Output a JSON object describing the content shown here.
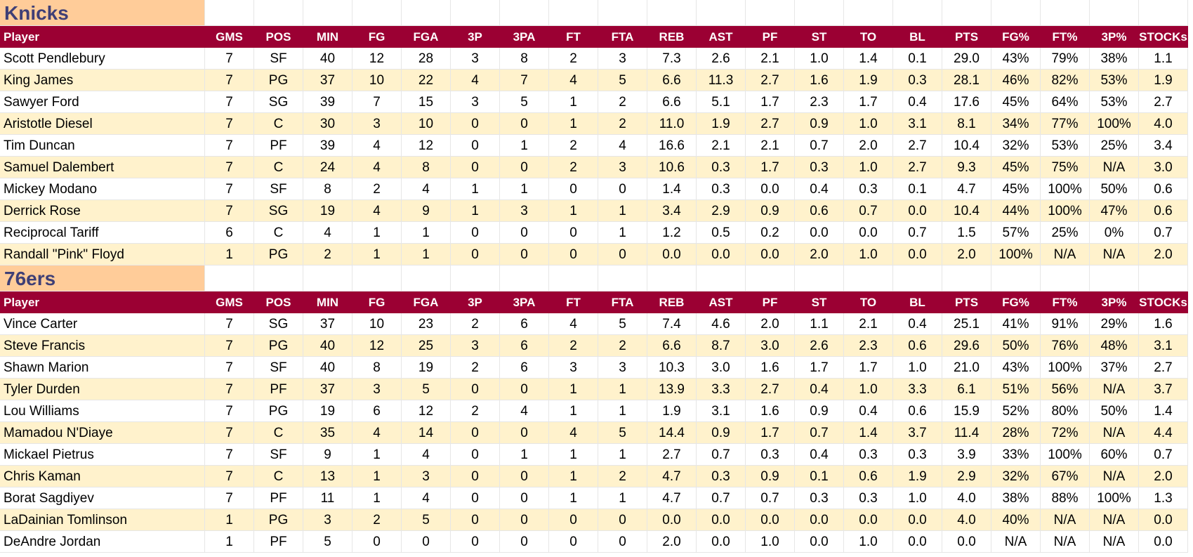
{
  "columns": [
    "Player",
    "GMS",
    "POS",
    "MIN",
    "FG",
    "FGA",
    "3P",
    "3PA",
    "FT",
    "FTA",
    "REB",
    "AST",
    "PF",
    "ST",
    "TO",
    "BL",
    "PTS",
    "FG%",
    "FT%",
    "3P%",
    "STOCKs"
  ],
  "colors": {
    "header_bg": "#9b0033",
    "header_text": "#ffffff",
    "team_bg": "#ffcc99",
    "team_text": "#3f3f76",
    "alt_row": "#fff2cc"
  },
  "teams": [
    {
      "name": "Knicks",
      "rows": [
        [
          "Scott Pendlebury",
          "7",
          "SF",
          "40",
          "12",
          "28",
          "3",
          "8",
          "2",
          "3",
          "7.3",
          "2.6",
          "2.1",
          "1.0",
          "1.4",
          "0.1",
          "29.0",
          "43%",
          "79%",
          "38%",
          "1.1"
        ],
        [
          "King James",
          "7",
          "PG",
          "37",
          "10",
          "22",
          "4",
          "7",
          "4",
          "5",
          "6.6",
          "11.3",
          "2.7",
          "1.6",
          "1.9",
          "0.3",
          "28.1",
          "46%",
          "82%",
          "53%",
          "1.9"
        ],
        [
          "Sawyer Ford",
          "7",
          "SG",
          "39",
          "7",
          "15",
          "3",
          "5",
          "1",
          "2",
          "6.6",
          "5.1",
          "1.7",
          "2.3",
          "1.7",
          "0.4",
          "17.6",
          "45%",
          "64%",
          "53%",
          "2.7"
        ],
        [
          "Aristotle Diesel",
          "7",
          "C",
          "30",
          "3",
          "10",
          "0",
          "0",
          "1",
          "2",
          "11.0",
          "1.9",
          "2.7",
          "0.9",
          "1.0",
          "3.1",
          "8.1",
          "34%",
          "77%",
          "100%",
          "4.0"
        ],
        [
          "Tim Duncan",
          "7",
          "PF",
          "39",
          "4",
          "12",
          "0",
          "1",
          "2",
          "4",
          "16.6",
          "2.1",
          "2.1",
          "0.7",
          "2.0",
          "2.7",
          "10.4",
          "32%",
          "53%",
          "25%",
          "3.4"
        ],
        [
          "Samuel Dalembert",
          "7",
          "C",
          "24",
          "4",
          "8",
          "0",
          "0",
          "2",
          "3",
          "10.6",
          "0.3",
          "1.7",
          "0.3",
          "1.0",
          "2.7",
          "9.3",
          "45%",
          "75%",
          "N/A",
          "3.0"
        ],
        [
          "Mickey Modano",
          "7",
          "SF",
          "8",
          "2",
          "4",
          "1",
          "1",
          "0",
          "0",
          "1.4",
          "0.3",
          "0.0",
          "0.4",
          "0.3",
          "0.1",
          "4.7",
          "45%",
          "100%",
          "50%",
          "0.6"
        ],
        [
          "Derrick Rose",
          "7",
          "SG",
          "19",
          "4",
          "9",
          "1",
          "3",
          "1",
          "1",
          "3.4",
          "2.9",
          "0.9",
          "0.6",
          "0.7",
          "0.0",
          "10.4",
          "44%",
          "100%",
          "47%",
          "0.6"
        ],
        [
          "Reciprocal Tariff",
          "6",
          "C",
          "4",
          "1",
          "1",
          "0",
          "0",
          "0",
          "1",
          "1.2",
          "0.5",
          "0.2",
          "0.0",
          "0.0",
          "0.7",
          "1.5",
          "57%",
          "25%",
          "0%",
          "0.7"
        ],
        [
          "Randall \"Pink\" Floyd",
          "1",
          "PG",
          "2",
          "1",
          "1",
          "0",
          "0",
          "0",
          "0",
          "0.0",
          "0.0",
          "0.0",
          "2.0",
          "1.0",
          "0.0",
          "2.0",
          "100%",
          "N/A",
          "N/A",
          "2.0"
        ]
      ]
    },
    {
      "name": "76ers",
      "rows": [
        [
          "Vince Carter",
          "7",
          "SG",
          "37",
          "10",
          "23",
          "2",
          "6",
          "4",
          "5",
          "7.4",
          "4.6",
          "2.0",
          "1.1",
          "2.1",
          "0.4",
          "25.1",
          "41%",
          "91%",
          "29%",
          "1.6"
        ],
        [
          "Steve Francis",
          "7",
          "PG",
          "40",
          "12",
          "25",
          "3",
          "6",
          "2",
          "2",
          "6.6",
          "8.7",
          "3.0",
          "2.6",
          "2.3",
          "0.6",
          "29.6",
          "50%",
          "76%",
          "48%",
          "3.1"
        ],
        [
          "Shawn Marion",
          "7",
          "SF",
          "40",
          "8",
          "19",
          "2",
          "6",
          "3",
          "3",
          "10.3",
          "3.0",
          "1.6",
          "1.7",
          "1.7",
          "1.0",
          "21.0",
          "43%",
          "100%",
          "37%",
          "2.7"
        ],
        [
          "Tyler Durden",
          "7",
          "PF",
          "37",
          "3",
          "5",
          "0",
          "0",
          "1",
          "1",
          "13.9",
          "3.3",
          "2.7",
          "0.4",
          "1.0",
          "3.3",
          "6.1",
          "51%",
          "56%",
          "N/A",
          "3.7"
        ],
        [
          "Lou Williams",
          "7",
          "PG",
          "19",
          "6",
          "12",
          "2",
          "4",
          "1",
          "1",
          "1.9",
          "3.1",
          "1.6",
          "0.9",
          "0.4",
          "0.6",
          "15.9",
          "52%",
          "80%",
          "50%",
          "1.4"
        ],
        [
          "Mamadou N'Diaye",
          "7",
          "C",
          "35",
          "4",
          "14",
          "0",
          "0",
          "4",
          "5",
          "14.4",
          "0.9",
          "1.7",
          "0.7",
          "1.4",
          "3.7",
          "11.4",
          "28%",
          "72%",
          "N/A",
          "4.4"
        ],
        [
          "Mickael Pietrus",
          "7",
          "SF",
          "9",
          "1",
          "4",
          "0",
          "1",
          "1",
          "1",
          "2.7",
          "0.7",
          "0.3",
          "0.4",
          "0.3",
          "0.3",
          "3.9",
          "33%",
          "100%",
          "60%",
          "0.7"
        ],
        [
          "Chris Kaman",
          "7",
          "C",
          "13",
          "1",
          "3",
          "0",
          "0",
          "1",
          "2",
          "4.7",
          "0.3",
          "0.9",
          "0.1",
          "0.6",
          "1.9",
          "2.9",
          "32%",
          "67%",
          "N/A",
          "2.0"
        ],
        [
          "Borat Sagdiyev",
          "7",
          "PF",
          "11",
          "1",
          "4",
          "0",
          "0",
          "1",
          "1",
          "4.7",
          "0.7",
          "0.7",
          "0.3",
          "0.3",
          "1.0",
          "4.0",
          "38%",
          "88%",
          "100%",
          "1.3"
        ],
        [
          "LaDainian Tomlinson",
          "1",
          "PG",
          "3",
          "2",
          "5",
          "0",
          "0",
          "0",
          "0",
          "0.0",
          "0.0",
          "0.0",
          "0.0",
          "0.0",
          "0.0",
          "4.0",
          "40%",
          "N/A",
          "N/A",
          "0.0"
        ],
        [
          "DeAndre Jordan",
          "1",
          "PF",
          "5",
          "0",
          "0",
          "0",
          "0",
          "0",
          "0",
          "2.0",
          "0.0",
          "1.0",
          "0.0",
          "1.0",
          "0.0",
          "0.0",
          "N/A",
          "N/A",
          "N/A",
          "0.0"
        ]
      ]
    }
  ]
}
